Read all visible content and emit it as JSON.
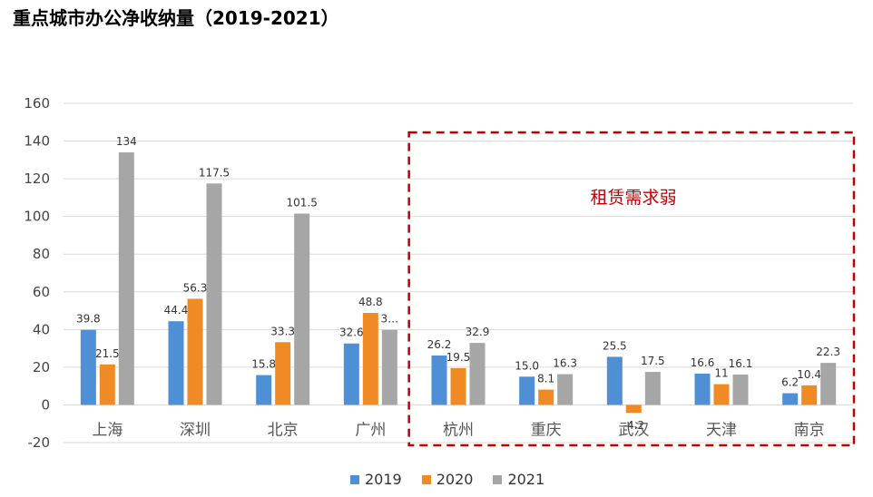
{
  "title": "重点城市办公净收纳量（2019-2021）",
  "chart_data": {
    "type": "bar",
    "categories": [
      "上海",
      "深圳",
      "北京",
      "广州",
      "杭州",
      "重庆",
      "武汉",
      "天津",
      "南京"
    ],
    "series": [
      {
        "name": "2019",
        "color": "#4e8fd6",
        "values": [
          39.8,
          44.4,
          15.8,
          32.6,
          26.2,
          15.0,
          25.5,
          16.6,
          6.2
        ],
        "labels": [
          "39.8",
          "44.4",
          "15.8",
          "32.6",
          "26.2",
          "15.0",
          "25.5",
          "16.6",
          "6.2"
        ]
      },
      {
        "name": "2020",
        "color": "#f08a24",
        "values": [
          21.5,
          56.3,
          33.3,
          48.8,
          19.5,
          8.1,
          -4.2,
          11,
          10.4
        ],
        "labels": [
          "21.5",
          "56.3",
          "33.3",
          "48.8",
          "19.5",
          "8.1",
          "-4.2",
          "11",
          "10.4"
        ]
      },
      {
        "name": "2021",
        "color": "#a6a6a6",
        "values": [
          134,
          117.5,
          101.5,
          39.8,
          32.9,
          16.3,
          17.5,
          16.1,
          22.3
        ],
        "labels": [
          "134",
          "117.5",
          "101.5",
          "3…",
          "32.9",
          "16.3",
          "17.5",
          "16.1",
          "22.3"
        ]
      }
    ],
    "yticks": [
      "-20",
      "0",
      "20",
      "40",
      "60",
      "80",
      "100",
      "120",
      "140",
      "160"
    ],
    "ylim": [
      -20,
      160
    ],
    "grid": true,
    "legend": "bottom",
    "annotation": "租赁需求弱",
    "annotation_color": "#c00000"
  }
}
